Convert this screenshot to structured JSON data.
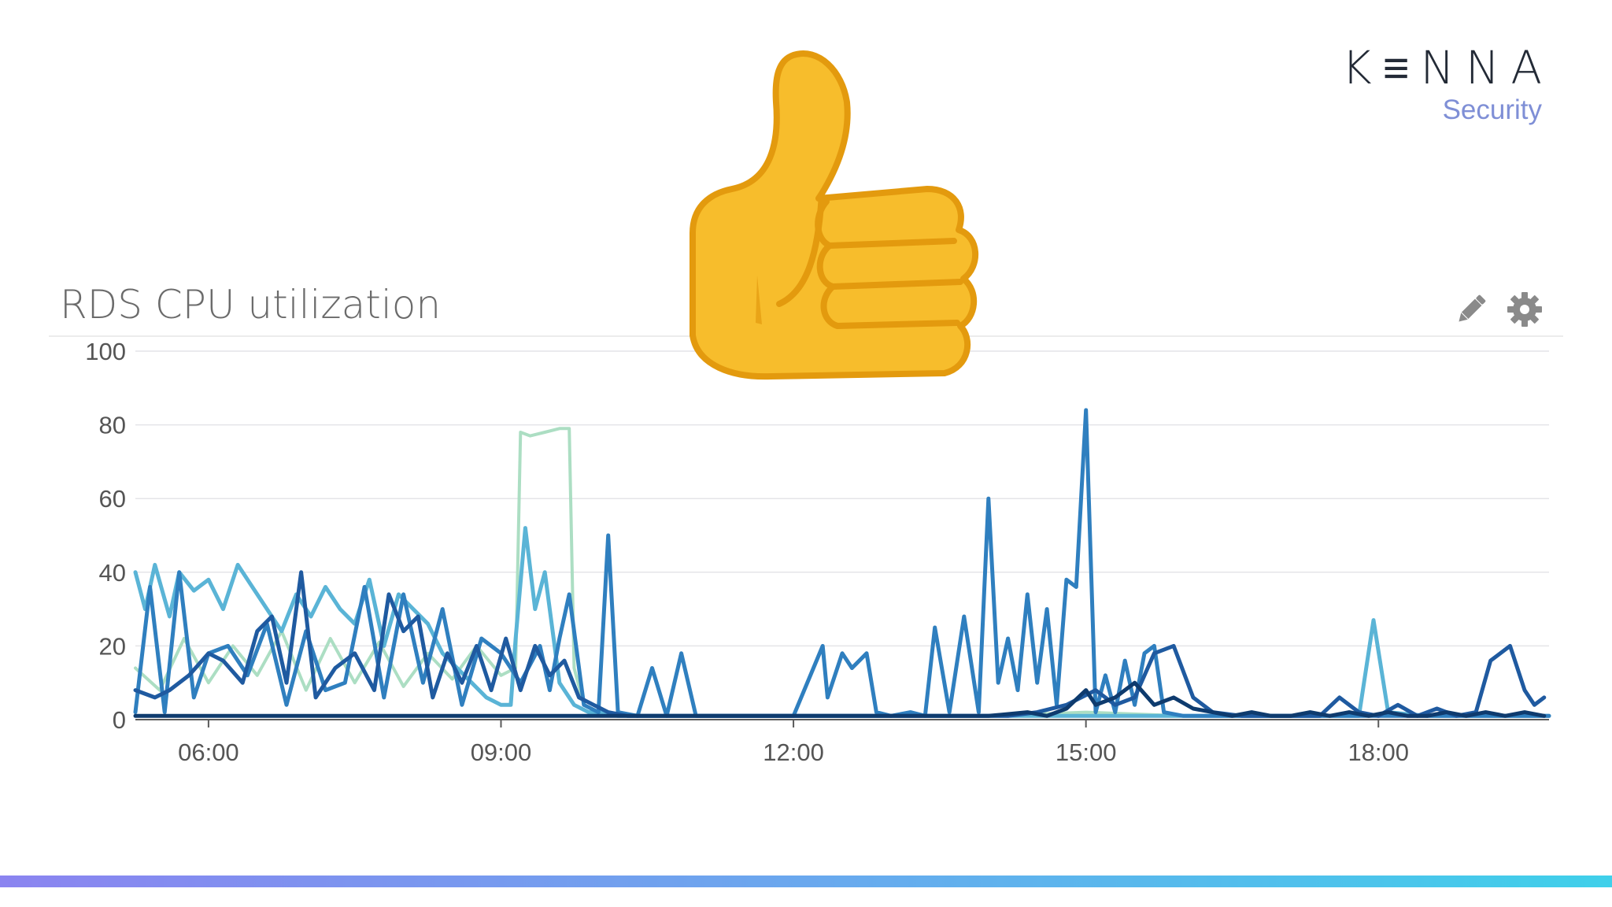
{
  "logo": {
    "word": "K≡NNA",
    "sub": "Security"
  },
  "panel": {
    "title": "RDS CPU utilization"
  },
  "icons": {
    "edit": "pencil-icon",
    "settings": "gear-icon",
    "reaction": "thumbs-up-icon"
  },
  "colors": {
    "brand_text": "#232a36",
    "brand_sub": "#7f8fd6",
    "series_1": "#a8dcc0",
    "series_2": "#5ab4d6",
    "series_3": "#2f7fbf",
    "series_4": "#1f5aa0",
    "series_5": "#0e3b6e"
  },
  "chart_data": {
    "type": "line",
    "title": "RDS CPU utilization",
    "xlabel": "",
    "ylabel": "",
    "x_ticks": [
      "06:00",
      "09:00",
      "12:00",
      "15:00",
      "18:00"
    ],
    "x_range_hours": [
      5.25,
      19.75
    ],
    "y_ticks": [
      0,
      20,
      40,
      60,
      80,
      100
    ],
    "ylim": [
      0,
      100
    ],
    "grid": true,
    "series": [
      {
        "color": "#a8dcc0",
        "x": [
          5.25,
          5.5,
          5.75,
          6.0,
          6.25,
          6.5,
          6.75,
          7.0,
          7.25,
          7.5,
          7.75,
          8.0,
          8.25,
          8.5,
          8.75,
          9.0,
          9.15,
          9.2,
          9.3,
          9.45,
          9.6,
          9.7,
          9.75,
          9.85,
          10.0,
          10.5,
          11.0,
          12.0,
          13.0,
          14.0,
          15.0,
          16.0,
          17.0,
          18.0,
          19.0,
          19.75
        ],
        "y": [
          14,
          8,
          22,
          10,
          20,
          12,
          24,
          8,
          22,
          10,
          21,
          9,
          18,
          11,
          20,
          12,
          14,
          78,
          77,
          78,
          79,
          79,
          14,
          4,
          2,
          1,
          1,
          1,
          1,
          1,
          2,
          1,
          1,
          1,
          1,
          1
        ]
      },
      {
        "color": "#5ab4d6",
        "x": [
          5.25,
          5.35,
          5.45,
          5.6,
          5.7,
          5.85,
          6.0,
          6.15,
          6.3,
          6.45,
          6.6,
          6.75,
          6.9,
          7.05,
          7.2,
          7.35,
          7.5,
          7.65,
          7.8,
          7.95,
          8.1,
          8.25,
          8.4,
          8.55,
          8.7,
          8.85,
          9.0,
          9.1,
          9.15,
          9.25,
          9.35,
          9.45,
          9.6,
          9.75,
          9.9,
          10.0,
          10.2,
          11.0,
          12.0,
          13.0,
          14.0,
          15.0,
          15.5,
          16.0,
          17.0,
          17.8,
          17.95,
          18.1,
          18.5,
          19.0,
          19.75
        ],
        "y": [
          40,
          30,
          42,
          28,
          40,
          35,
          38,
          30,
          42,
          36,
          30,
          24,
          34,
          28,
          36,
          30,
          26,
          38,
          20,
          34,
          30,
          26,
          18,
          14,
          10,
          6,
          4,
          4,
          22,
          52,
          30,
          40,
          10,
          4,
          2,
          2,
          1,
          1,
          1,
          1,
          1,
          1,
          1,
          1,
          1,
          1,
          27,
          2,
          1,
          1,
          1
        ]
      },
      {
        "color": "#2f7fbf",
        "x": [
          5.25,
          5.4,
          5.55,
          5.7,
          5.85,
          6.0,
          6.2,
          6.4,
          6.6,
          6.8,
          7.0,
          7.2,
          7.4,
          7.6,
          7.8,
          8.0,
          8.2,
          8.4,
          8.6,
          8.8,
          9.0,
          9.2,
          9.4,
          9.5,
          9.6,
          9.7,
          9.85,
          10.0,
          10.1,
          10.2,
          10.4,
          10.55,
          10.7,
          10.85,
          11.0,
          11.5,
          11.75,
          12.0,
          12.3,
          12.35,
          12.5,
          12.6,
          12.75,
          12.85,
          13.0,
          13.2,
          13.35,
          13.45,
          13.6,
          13.75,
          13.9,
          14.0,
          14.1,
          14.2,
          14.3,
          14.4,
          14.5,
          14.6,
          14.7,
          14.8,
          14.9,
          15.0,
          15.1,
          15.2,
          15.3,
          15.4,
          15.5,
          15.6,
          15.7,
          15.8,
          16.0,
          16.5,
          17.0,
          17.5,
          18.0,
          18.5,
          19.0,
          19.75
        ],
        "y": [
          2,
          36,
          2,
          40,
          6,
          18,
          20,
          12,
          26,
          4,
          24,
          8,
          10,
          36,
          6,
          34,
          10,
          30,
          4,
          22,
          18,
          10,
          20,
          8,
          22,
          34,
          4,
          2,
          50,
          2,
          1,
          14,
          1,
          18,
          1,
          1,
          1,
          1,
          20,
          6,
          18,
          14,
          18,
          2,
          1,
          2,
          1,
          25,
          2,
          28,
          2,
          60,
          10,
          22,
          8,
          34,
          10,
          30,
          4,
          38,
          36,
          84,
          2,
          12,
          2,
          16,
          4,
          18,
          20,
          2,
          1,
          1,
          1,
          1,
          1,
          1,
          1,
          1
        ]
      },
      {
        "color": "#1f5aa0",
        "x": [
          5.25,
          5.45,
          5.6,
          5.8,
          6.0,
          6.15,
          6.35,
          6.5,
          6.65,
          6.8,
          6.95,
          7.1,
          7.3,
          7.5,
          7.7,
          7.85,
          8.0,
          8.15,
          8.3,
          8.45,
          8.6,
          8.75,
          8.9,
          9.05,
          9.2,
          9.35,
          9.5,
          9.65,
          9.8,
          9.95,
          10.1,
          10.3,
          10.5,
          11.0,
          11.5,
          12.0,
          12.5,
          13.0,
          13.3,
          13.6,
          13.9,
          14.2,
          14.5,
          14.8,
          15.1,
          15.3,
          15.5,
          15.7,
          15.9,
          16.1,
          16.3,
          16.6,
          16.9,
          17.2,
          17.4,
          17.6,
          17.8,
          18.0,
          18.2,
          18.4,
          18.6,
          18.8,
          19.0,
          19.15,
          19.35,
          19.5,
          19.6,
          19.7
        ],
        "y": [
          8,
          6,
          8,
          12,
          18,
          16,
          10,
          24,
          28,
          10,
          40,
          6,
          14,
          18,
          8,
          34,
          24,
          28,
          6,
          18,
          10,
          20,
          8,
          22,
          8,
          20,
          12,
          16,
          6,
          4,
          2,
          1,
          1,
          1,
          1,
          1,
          1,
          1,
          1,
          1,
          1,
          1,
          2,
          4,
          8,
          4,
          6,
          18,
          20,
          6,
          2,
          1,
          1,
          1,
          1,
          6,
          2,
          1,
          4,
          1,
          3,
          1,
          2,
          16,
          20,
          8,
          4,
          6
        ]
      },
      {
        "color": "#0e3b6e",
        "x": [
          5.25,
          6.0,
          7.0,
          8.0,
          9.0,
          10.0,
          11.0,
          12.0,
          13.0,
          14.0,
          14.4,
          14.6,
          14.8,
          15.0,
          15.1,
          15.3,
          15.5,
          15.7,
          15.9,
          16.1,
          16.3,
          16.5,
          16.7,
          16.9,
          17.1,
          17.3,
          17.5,
          17.7,
          17.9,
          18.1,
          18.3,
          18.5,
          18.7,
          18.9,
          19.1,
          19.3,
          19.5,
          19.7
        ],
        "y": [
          1,
          1,
          1,
          1,
          1,
          1,
          1,
          1,
          1,
          1,
          2,
          1,
          3,
          8,
          4,
          6,
          10,
          4,
          6,
          3,
          2,
          1,
          2,
          1,
          1,
          2,
          1,
          2,
          1,
          2,
          1,
          1,
          2,
          1,
          2,
          1,
          2,
          1
        ]
      }
    ]
  }
}
